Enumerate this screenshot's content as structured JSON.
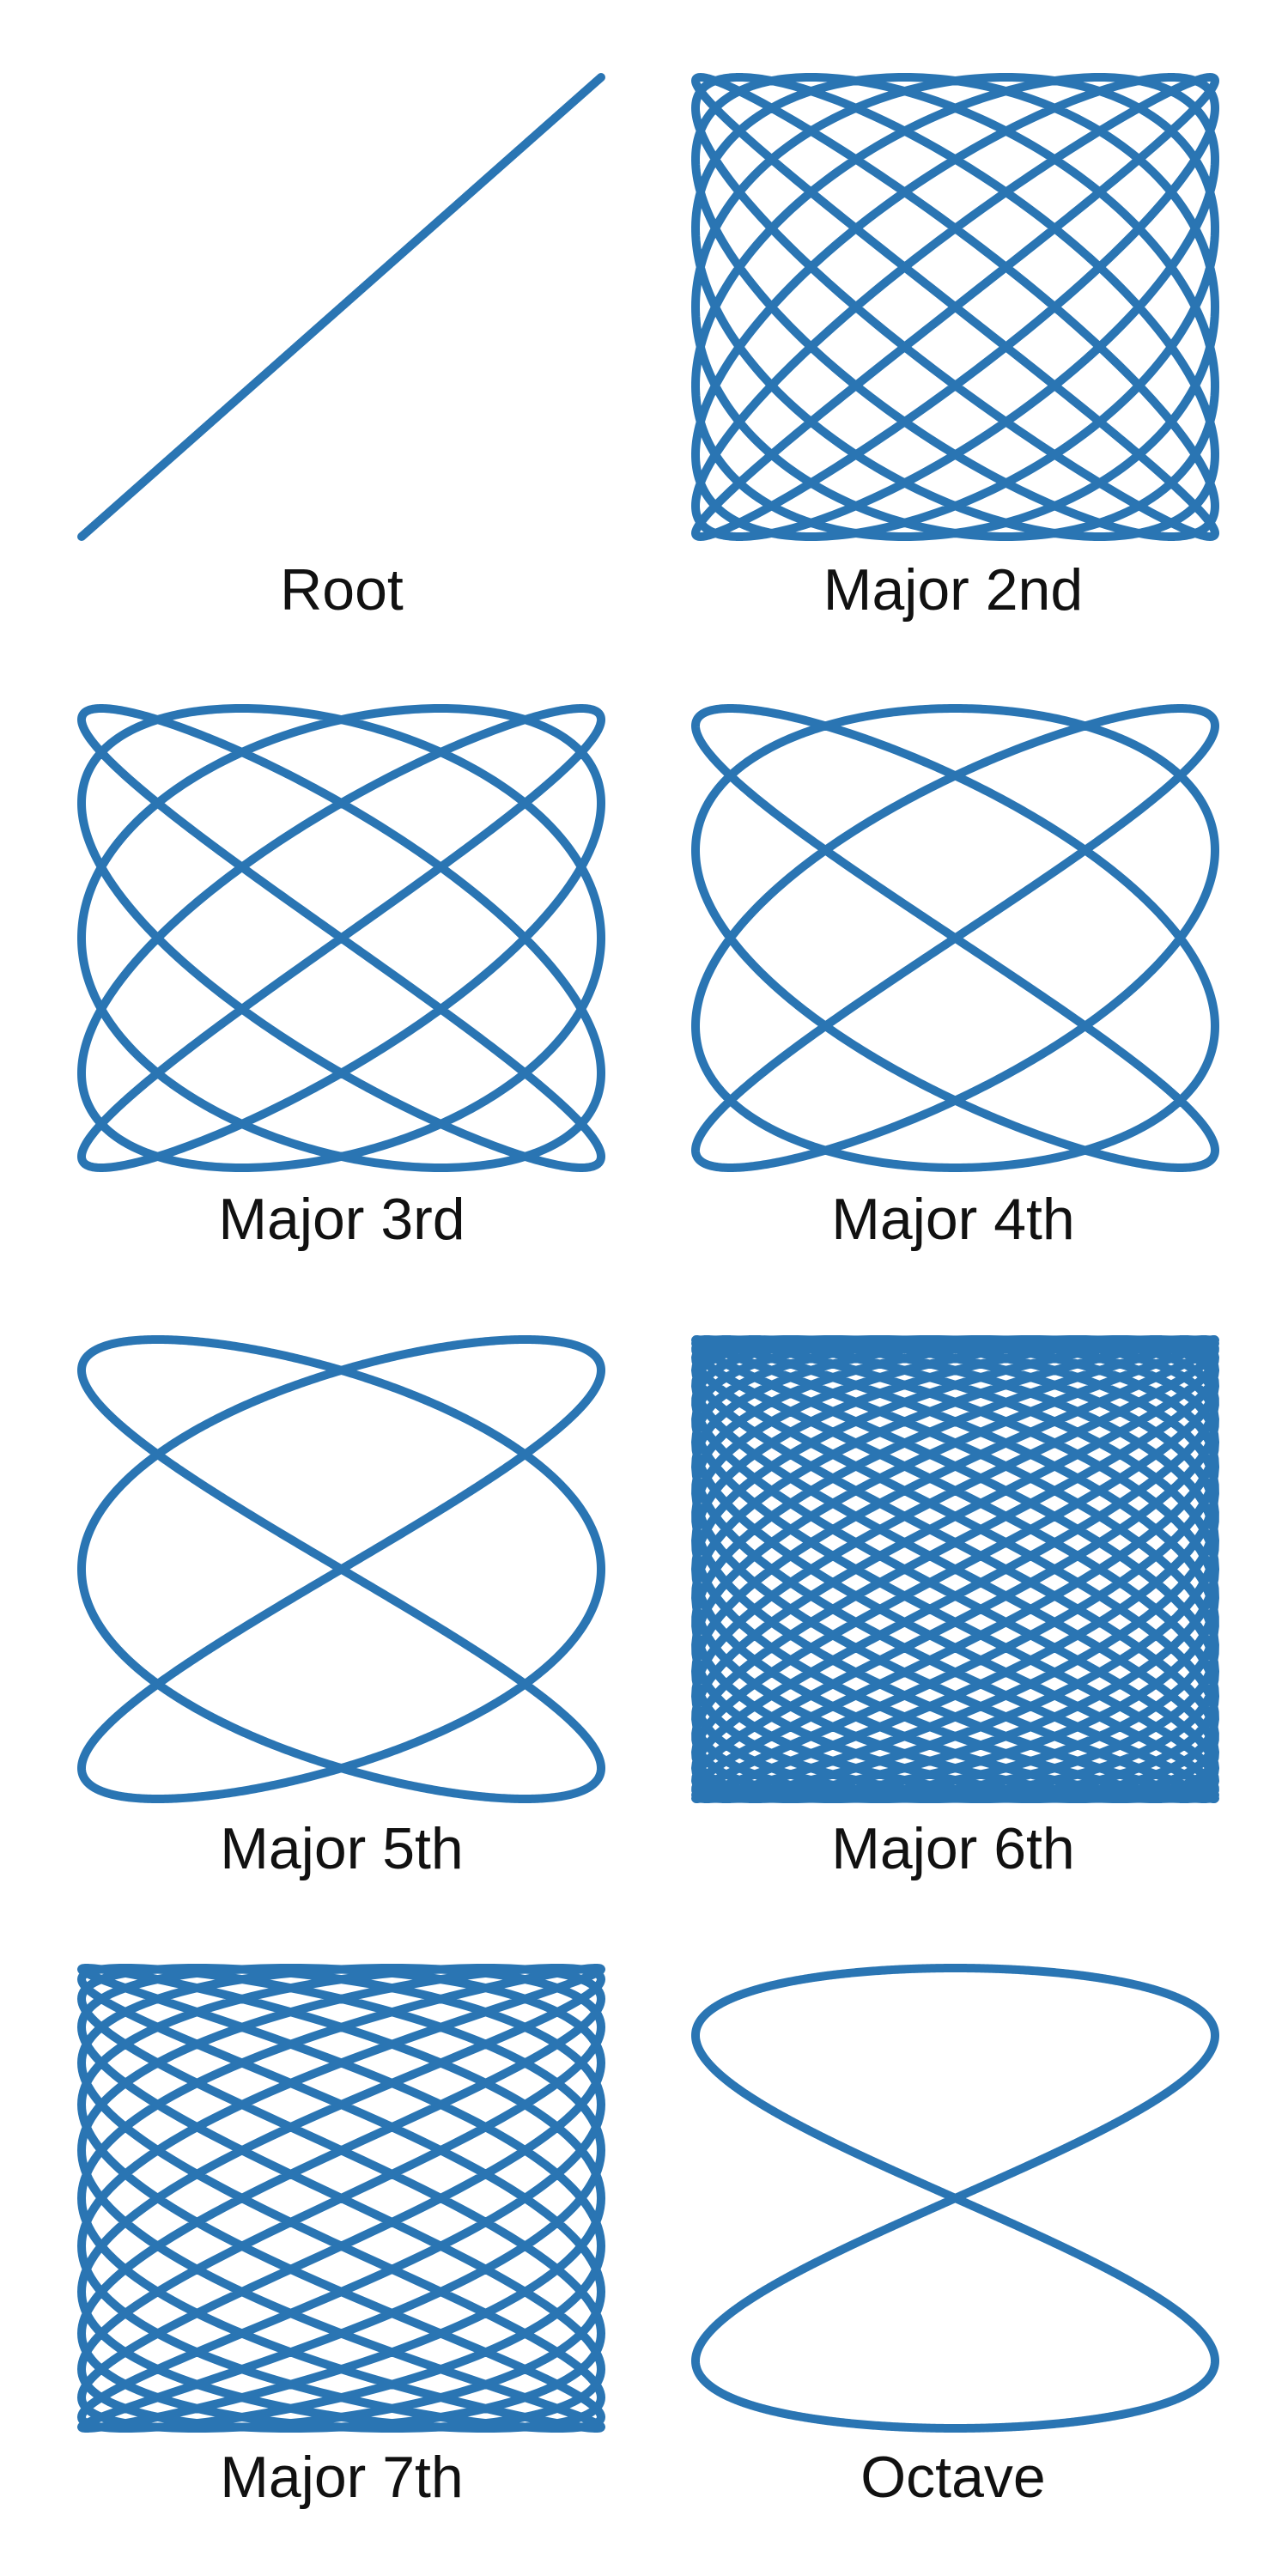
{
  "color": "#2a75b3",
  "panels": [
    {
      "id": "root",
      "label": "Root",
      "ratio": [
        1,
        1
      ],
      "phase": 0
    },
    {
      "id": "major-2",
      "label": "Major 2nd",
      "ratio": [
        9,
        8
      ],
      "phase": 0
    },
    {
      "id": "major-3",
      "label": "Major 3rd",
      "ratio": [
        5,
        4
      ],
      "phase": 0
    },
    {
      "id": "major-4",
      "label": "Major 4th",
      "ratio": [
        4,
        3
      ],
      "phase": 0
    },
    {
      "id": "major-5",
      "label": "Major 5th",
      "ratio": [
        3,
        2
      ],
      "phase": 0
    },
    {
      "id": "major-6",
      "label": "Major 6th",
      "ratio": [
        27,
        16
      ],
      "phase": 0
    },
    {
      "id": "major-7",
      "label": "Major 7th",
      "ratio": [
        15,
        8
      ],
      "phase": 0
    },
    {
      "id": "octave",
      "label": "Octave",
      "ratio": [
        2,
        1
      ],
      "phase": 0
    }
  ]
}
